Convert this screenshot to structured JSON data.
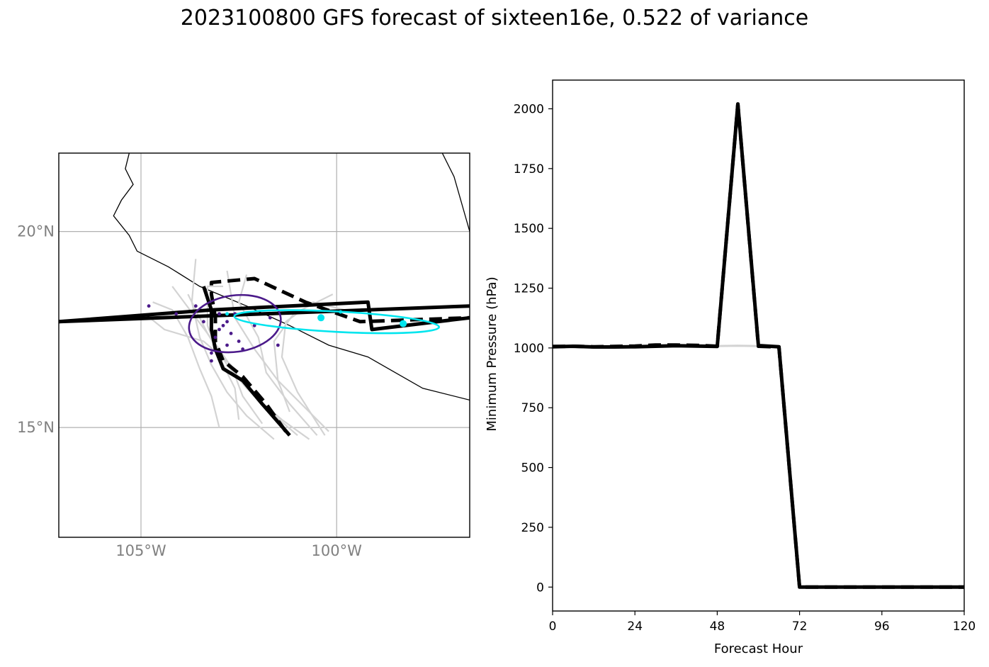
{
  "title": "2023100800 GFS forecast of sixteen16e, 0.522 of variance",
  "colors": {
    "ensemble": "#d3d3d3",
    "main_track": "#000000",
    "ellipse_purple": "#4b1a8a",
    "ellipse_cyan": "#00e5ee",
    "grid": "#b0b0b0",
    "map_labels": "#808080"
  },
  "chart_data": [
    {
      "type": "map",
      "lon_range": [
        -107.1,
        -96.6
      ],
      "lat_range": [
        12.2,
        22.0
      ],
      "lat_ticks": [
        {
          "value": 20,
          "label": "20°N"
        },
        {
          "value": 15,
          "label": "15°N"
        }
      ],
      "lon_ticks": [
        {
          "value": -105,
          "label": "105°W"
        },
        {
          "value": -100,
          "label": "100°W"
        }
      ],
      "grid": true,
      "coastline": [
        [
          -105.3,
          22.0
        ],
        [
          -105.4,
          21.6
        ],
        [
          -105.2,
          21.2
        ],
        [
          -105.5,
          20.8
        ],
        [
          -105.7,
          20.4
        ],
        [
          -105.3,
          19.9
        ],
        [
          -105.1,
          19.5
        ],
        [
          -104.3,
          19.1
        ],
        [
          -103.5,
          18.6
        ],
        [
          -102.3,
          18.1
        ],
        [
          -101.2,
          17.6
        ],
        [
          -100.2,
          17.1
        ],
        [
          -99.2,
          16.8
        ],
        [
          -98.5,
          16.4
        ],
        [
          -97.8,
          16.0
        ],
        [
          -96.6,
          15.7
        ]
      ],
      "coastline_east": [
        [
          -97.3,
          22.0
        ],
        [
          -97.0,
          21.4
        ],
        [
          -96.6,
          20.0
        ]
      ],
      "tracks_main": [
        {
          "style": "solid",
          "points": [
            [
              -101.2,
              14.8
            ],
            [
              -101.9,
              15.6
            ],
            [
              -102.4,
              16.2
            ],
            [
              -102.9,
              16.5
            ],
            [
              -103.1,
              17.0
            ],
            [
              -103.2,
              17.5
            ],
            [
              -103.2,
              18.0
            ],
            [
              -103.4,
              18.6
            ]
          ]
        },
        {
          "style": "dashed",
          "points": [
            [
              -101.3,
              14.9
            ],
            [
              -101.8,
              15.6
            ],
            [
              -102.4,
              16.3
            ],
            [
              -102.9,
              16.7
            ],
            [
              -103.1,
              17.2
            ],
            [
              -103.1,
              17.8
            ],
            [
              -103.2,
              18.4
            ],
            [
              -103.2,
              18.7
            ],
            [
              -102.1,
              18.8
            ],
            [
              -100.8,
              18.2
            ],
            [
              -99.4,
              17.7
            ],
            [
              -96.6,
              17.8
            ]
          ]
        },
        {
          "style": "solid",
          "points": [
            [
              -107.1,
              17.7
            ],
            [
              -103.2,
              18.0
            ],
            [
              -99.2,
              18.2
            ],
            [
              -99.1,
              17.5
            ],
            [
              -96.6,
              17.8
            ]
          ]
        },
        {
          "style": "solid",
          "points": [
            [
              -107.1,
              17.7
            ],
            [
              -96.6,
              18.1
            ]
          ]
        }
      ],
      "ensemble_tracks": [
        [
          [
            -101.0,
            14.8
          ],
          [
            -101.7,
            15.4
          ],
          [
            -102.3,
            16.0
          ],
          [
            -102.8,
            16.6
          ],
          [
            -103.3,
            17.4
          ],
          [
            -103.8,
            18.4
          ]
        ],
        [
          [
            -100.7,
            14.7
          ],
          [
            -101.4,
            15.2
          ],
          [
            -102.1,
            15.8
          ],
          [
            -102.6,
            16.4
          ],
          [
            -103.0,
            17.0
          ],
          [
            -103.6,
            17.8
          ],
          [
            -104.2,
            18.6
          ]
        ],
        [
          [
            -101.6,
            14.7
          ],
          [
            -102.3,
            15.3
          ],
          [
            -102.8,
            15.9
          ],
          [
            -103.2,
            16.6
          ],
          [
            -103.5,
            17.3
          ],
          [
            -103.7,
            18.2
          ],
          [
            -103.6,
            19.3
          ]
        ],
        [
          [
            -100.2,
            14.9
          ],
          [
            -100.8,
            15.5
          ],
          [
            -101.5,
            16.2
          ],
          [
            -102.1,
            17.0
          ],
          [
            -102.6,
            17.8
          ],
          [
            -102.8,
            19.0
          ]
        ],
        [
          [
            -100.5,
            14.8
          ],
          [
            -101.2,
            15.6
          ],
          [
            -101.8,
            16.4
          ],
          [
            -102.0,
            17.3
          ],
          [
            -102.5,
            18.2
          ],
          [
            -102.3,
            18.9
          ]
        ],
        [
          [
            -103.0,
            15.0
          ],
          [
            -103.2,
            15.8
          ],
          [
            -103.5,
            16.5
          ],
          [
            -103.8,
            17.3
          ],
          [
            -104.2,
            18.0
          ],
          [
            -104.7,
            18.2
          ]
        ],
        [
          [
            -101.9,
            15.1
          ],
          [
            -102.4,
            15.8
          ],
          [
            -102.7,
            16.6
          ],
          [
            -103.4,
            17.2
          ],
          [
            -104.4,
            17.5
          ],
          [
            -104.9,
            17.9
          ]
        ],
        [
          [
            -101.2,
            15.4
          ],
          [
            -101.5,
            16.2
          ],
          [
            -101.6,
            17.2
          ],
          [
            -101.1,
            17.9
          ],
          [
            -100.1,
            18.4
          ]
        ],
        [
          [
            -100.3,
            14.8
          ],
          [
            -101.0,
            15.9
          ],
          [
            -101.4,
            16.8
          ],
          [
            -101.3,
            17.7
          ],
          [
            -100.6,
            18.2
          ],
          [
            -99.8,
            18.0
          ]
        ],
        [
          [
            -102.5,
            15.2
          ],
          [
            -102.6,
            16.0
          ],
          [
            -103.0,
            16.8
          ],
          [
            -103.3,
            17.6
          ],
          [
            -103.3,
            18.6
          ],
          [
            -102.9,
            18.6
          ]
        ]
      ],
      "purple_points": [
        [
          -104.8,
          18.1
        ],
        [
          -104.1,
          17.9
        ],
        [
          -103.6,
          18.1
        ],
        [
          -103.4,
          17.7
        ],
        [
          -103.0,
          17.9
        ],
        [
          -102.8,
          17.7
        ],
        [
          -103.0,
          17.5
        ],
        [
          -103.1,
          17.3
        ],
        [
          -102.7,
          17.4
        ],
        [
          -102.5,
          17.2
        ],
        [
          -102.4,
          17.0
        ],
        [
          -102.8,
          17.1
        ],
        [
          -102.1,
          17.6
        ],
        [
          -101.7,
          17.8
        ],
        [
          -101.5,
          17.1
        ],
        [
          -103.2,
          16.9
        ],
        [
          -103.2,
          16.7
        ],
        [
          -102.6,
          17.9
        ],
        [
          -102.9,
          17.6
        ],
        [
          -103.0,
          17.9
        ]
      ],
      "purple_ellipse": {
        "center": [
          -102.6,
          17.65
        ],
        "rx": 1.18,
        "ry": 0.72,
        "angle_deg": -8
      },
      "cyan_ellipse": {
        "center": [
          -100.0,
          17.7
        ],
        "rx": 2.62,
        "ry": 0.26,
        "angle_deg": 3
      },
      "cyan_points": [
        [
          -100.4,
          17.8
        ],
        [
          -98.3,
          17.65
        ],
        [
          -99.9,
          17.95
        ],
        [
          -102.8,
          17.9
        ]
      ]
    },
    {
      "type": "line",
      "xlabel": "Forecast Hour",
      "ylabel": "Minimum Pressure (hPa)",
      "xlim": [
        0,
        120
      ],
      "ylim": [
        -100,
        2120
      ],
      "xticks": [
        0,
        24,
        48,
        72,
        96,
        120
      ],
      "yticks": [
        0,
        250,
        500,
        750,
        1000,
        1250,
        1500,
        1750,
        2000
      ],
      "grid": false,
      "series": [
        {
          "style": "ensemble",
          "x": [
            0,
            6,
            12,
            18,
            24,
            30,
            36,
            42,
            48,
            54,
            60,
            66
          ],
          "values": [
            1007,
            1008,
            1006,
            1007,
            1006,
            1008,
            1009,
            1008,
            1008,
            1009,
            1008,
            1007
          ]
        },
        {
          "style": "dashed",
          "x": [
            0,
            6,
            12,
            18,
            24,
            30,
            36,
            42,
            48,
            54,
            60,
            66,
            72,
            78,
            84,
            90,
            96,
            102,
            108,
            114,
            120
          ],
          "values": [
            1006,
            1007,
            1005,
            1006,
            1008,
            1012,
            1012,
            1011,
            1007,
            2020,
            1007,
            1004,
            0,
            0,
            0,
            0,
            0,
            0,
            0,
            0,
            0
          ]
        },
        {
          "style": "solid",
          "x": [
            0,
            6,
            12,
            18,
            24,
            30,
            36,
            42,
            48,
            54,
            60,
            66,
            72,
            78,
            84,
            90,
            96,
            102,
            108,
            114,
            120
          ],
          "values": [
            1005,
            1007,
            1004,
            1004,
            1005,
            1007,
            1009,
            1008,
            1006,
            2020,
            1010,
            1005,
            0,
            0,
            0,
            0,
            0,
            0,
            0,
            0,
            0
          ]
        }
      ]
    }
  ]
}
